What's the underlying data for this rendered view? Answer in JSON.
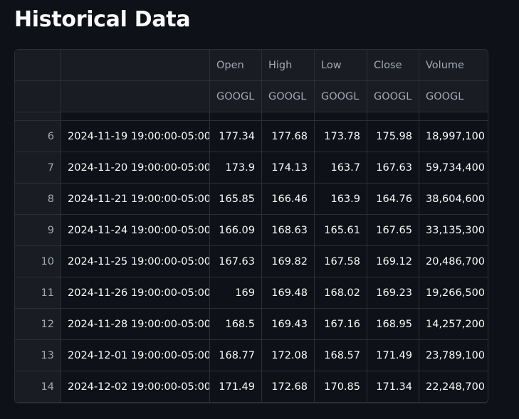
{
  "title": "Historical Data",
  "table": {
    "columns": [
      "Open",
      "High",
      "Low",
      "Close",
      "Volume"
    ],
    "tickers": [
      "GOOGL",
      "GOOGL",
      "GOOGL",
      "GOOGL",
      "GOOGL"
    ],
    "rows": [
      {
        "index": "6",
        "date": "2024-11-19 19:00:00-05:00",
        "open": "177.34",
        "high": "177.68",
        "low": "173.78",
        "close": "175.98",
        "volume": "18,997,100"
      },
      {
        "index": "7",
        "date": "2024-11-20 19:00:00-05:00",
        "open": "173.9",
        "high": "174.13",
        "low": "163.7",
        "close": "167.63",
        "volume": "59,734,400"
      },
      {
        "index": "8",
        "date": "2024-11-21 19:00:00-05:00",
        "open": "165.85",
        "high": "166.46",
        "low": "163.9",
        "close": "164.76",
        "volume": "38,604,600"
      },
      {
        "index": "9",
        "date": "2024-11-24 19:00:00-05:00",
        "open": "166.09",
        "high": "168.63",
        "low": "165.61",
        "close": "167.65",
        "volume": "33,135,300"
      },
      {
        "index": "10",
        "date": "2024-11-25 19:00:00-05:00",
        "open": "167.63",
        "high": "169.82",
        "low": "167.58",
        "close": "169.12",
        "volume": "20,486,700"
      },
      {
        "index": "11",
        "date": "2024-11-26 19:00:00-05:00",
        "open": "169",
        "high": "169.48",
        "low": "168.02",
        "close": "169.23",
        "volume": "19,266,500"
      },
      {
        "index": "12",
        "date": "2024-11-28 19:00:00-05:00",
        "open": "168.5",
        "high": "169.43",
        "low": "167.16",
        "close": "168.95",
        "volume": "14,257,200"
      },
      {
        "index": "13",
        "date": "2024-12-01 19:00:00-05:00",
        "open": "168.77",
        "high": "172.08",
        "low": "168.57",
        "close": "171.49",
        "volume": "23,789,100"
      },
      {
        "index": "14",
        "date": "2024-12-02 19:00:00-05:00",
        "open": "171.49",
        "high": "172.68",
        "low": "170.85",
        "close": "171.34",
        "volume": "22,248,700"
      }
    ]
  }
}
